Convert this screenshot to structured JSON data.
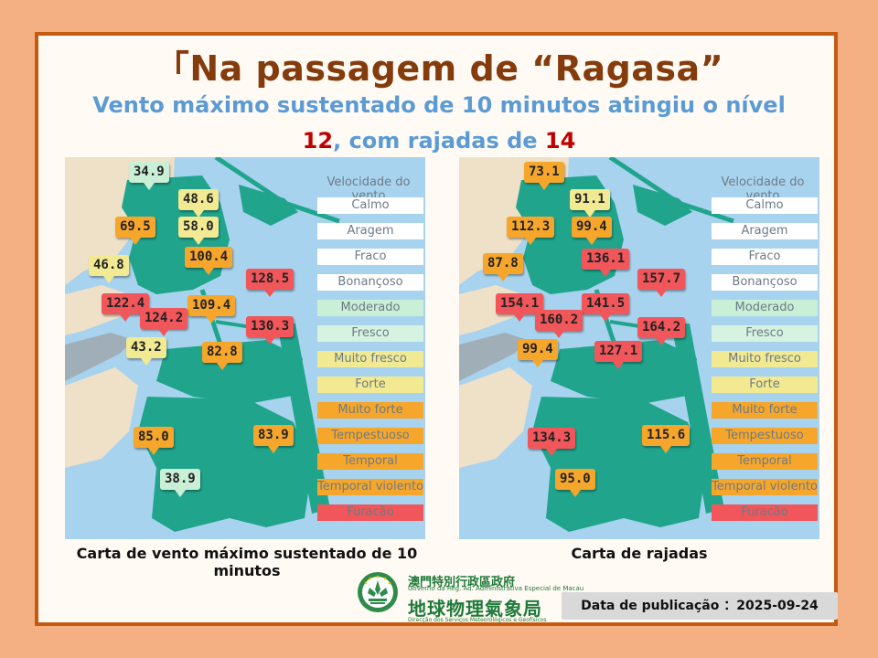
{
  "title": "「Na passagem de “Ragasa”",
  "subtitle_line1": "Vento máximo sustentado de 10 minutos atingiu o nível",
  "subtitle_line2": {
    "level": "12",
    "sep": ", com rajadas de ",
    "gust_level": "14"
  },
  "colors": {
    "calmo": "#ffffff",
    "moderado": "#c9efd6",
    "fresco": "#d6f2e0",
    "muito_fresco": "#f1ea93",
    "forte": "#f3e990",
    "muito_forte": "#f6a62a",
    "tempestuoso": "#f6a62a",
    "temporal": "#f6a62a",
    "temporal_violento": "#f6a62a",
    "furacao": "#f0565a"
  },
  "legend": {
    "title": "Velocidade do vento",
    "items": [
      "Calmo",
      "Aragem",
      "Fraco",
      "Bonançoso",
      "Moderado",
      "Fresco",
      "Muito fresco",
      "Forte",
      "Muito forte",
      "Tempestuoso",
      "Temporal",
      "Temporal violento",
      "Furacão"
    ]
  },
  "map1": {
    "caption": "Carta de vento máximo sustentado de 10 minutos",
    "values": [
      "34.9",
      "48.6",
      "58.0",
      "69.5",
      "100.4",
      "46.8",
      "128.5",
      "122.4",
      "109.4",
      "124.2",
      "130.3",
      "43.2",
      "82.8",
      "85.0",
      "83.9",
      "38.9"
    ]
  },
  "map2": {
    "caption": "Carta de rajadas",
    "values": [
      "73.1",
      "91.1",
      "112.3",
      "99.4",
      "136.1",
      "87.8",
      "157.7",
      "154.1",
      "141.5",
      "160.2",
      "164.2",
      "99.4",
      "127.1",
      "134.3",
      "115.6",
      "95.0"
    ]
  },
  "footer": {
    "gov_chinese": "澳門特別行政區政府",
    "gov_portuguese": "Governo da Reg. Ad. Administrativa Especial de Macau",
    "agency_chinese": "地球物理氣象局",
    "agency_portuguese": "Direcção dos Serviços Meteorológicos e Geofísicos",
    "publication_label": "Data de publicação ：",
    "publication_date": "2025-09-24"
  }
}
